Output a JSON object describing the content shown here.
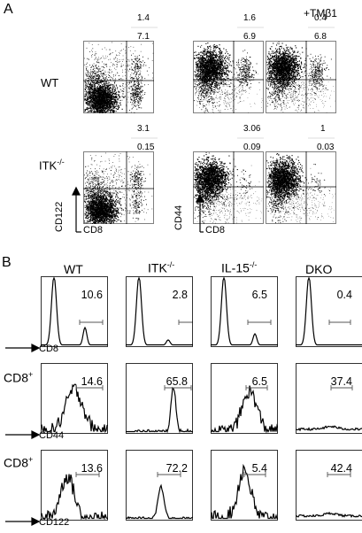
{
  "panelA": {
    "letter": "A",
    "tmb1_label": "+TMβ1",
    "rows": [
      {
        "label": "WT",
        "plots": [
          {
            "upper": "1.4",
            "lower": "7.1",
            "ylabel": "CD122",
            "xlabel": "CD8"
          },
          {
            "upper": "1.6",
            "lower": "6.9",
            "ylabel": "CD44",
            "xlabel": "CD8"
          },
          {
            "upper": "0.4",
            "lower": "6.8"
          }
        ]
      },
      {
        "label": "ITK",
        "label_sup": "-/-",
        "plots": [
          {
            "upper": "3.1",
            "lower": "0.15"
          },
          {
            "upper": "3.06",
            "lower": "0.09"
          },
          {
            "upper": "1",
            "lower": "0.03"
          }
        ]
      }
    ],
    "ylabel_left": "CD122",
    "xlabel_left": "CD8",
    "ylabel_right": "CD44",
    "xlabel_right": "CD8"
  },
  "panelB": {
    "letter": "B",
    "columns": [
      {
        "name": "WT",
        "sup": ""
      },
      {
        "name": "ITK",
        "sup": "-/-"
      },
      {
        "name": "IL-15",
        "sup": "-/-"
      },
      {
        "name": "DKO",
        "sup": ""
      }
    ],
    "rows": [
      {
        "label": "",
        "axis": "CD8",
        "values": [
          "10.6",
          "2.8",
          "6.5",
          "0.4"
        ]
      },
      {
        "label": "CD8",
        "label_sup": "+",
        "axis": "CD44",
        "values": [
          "14.6",
          "65.8",
          "6.5",
          "37.4"
        ]
      },
      {
        "label": "CD8",
        "label_sup": "+",
        "axis": "CD122",
        "values": [
          "13.6",
          "72.2",
          "5.4",
          "42.4"
        ]
      }
    ]
  }
}
